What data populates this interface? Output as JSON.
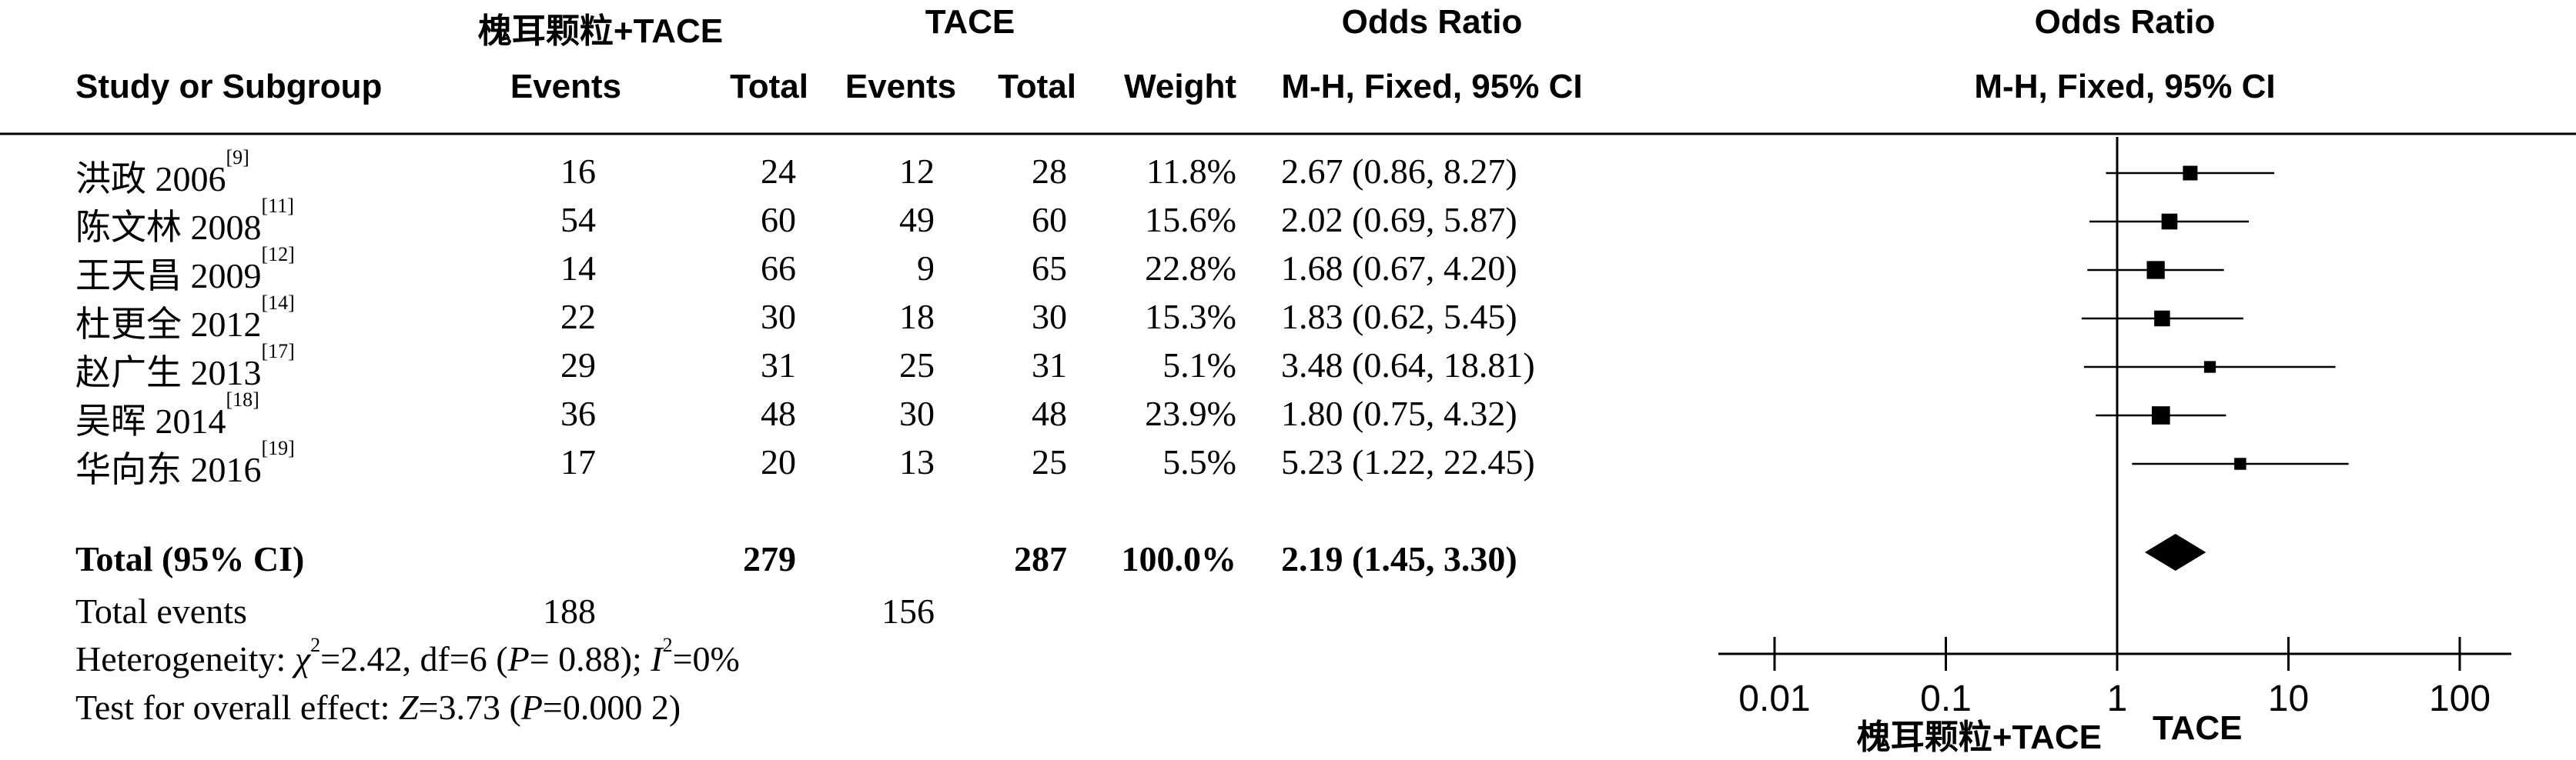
{
  "headers": {
    "group1": "槐耳颗粒+TACE",
    "group2": "TACE",
    "or_table": "Odds Ratio",
    "or_plot": "Odds Ratio",
    "study": "Study or Subgroup",
    "events1": "Events",
    "total1": "Total",
    "events2": "Events",
    "total2": "Total",
    "weight": "Weight",
    "method_table": "M-H, Fixed, 95% CI",
    "method_plot": "M-H, Fixed, 95% CI"
  },
  "studies": [
    {
      "name": "洪政 2006",
      "ref": "[9]",
      "e1": "16",
      "t1": "24",
      "e2": "12",
      "t2": "28",
      "weight": "11.8%",
      "ci": "2.67 (0.86, 8.27)"
    },
    {
      "name": "陈文林 2008",
      "ref": "[11]",
      "e1": "54",
      "t1": "60",
      "e2": "49",
      "t2": "60",
      "weight": "15.6%",
      "ci": "2.02 (0.69, 5.87)"
    },
    {
      "name": "王天昌 2009",
      "ref": "[12]",
      "e1": "14",
      "t1": "66",
      "e2": "9",
      "t2": "65",
      "weight": "22.8%",
      "ci": "1.68 (0.67, 4.20)"
    },
    {
      "name": "杜更全 2012",
      "ref": "[14]",
      "e1": "22",
      "t1": "30",
      "e2": "18",
      "t2": "30",
      "weight": "15.3%",
      "ci": "1.83 (0.62, 5.45)"
    },
    {
      "name": "赵广生 2013",
      "ref": "[17]",
      "e1": "29",
      "t1": "31",
      "e2": "25",
      "t2": "31",
      "weight": "5.1%",
      "ci": "3.48 (0.64, 18.81)"
    },
    {
      "name": "吴晖 2014",
      "ref": "[18]",
      "e1": "36",
      "t1": "48",
      "e2": "30",
      "t2": "48",
      "weight": "23.9%",
      "ci": "1.80 (0.75, 4.32)"
    },
    {
      "name": "华向东 2016",
      "ref": "[19]",
      "e1": "17",
      "t1": "20",
      "e2": "13",
      "t2": "25",
      "weight": "5.5%",
      "ci": "5.23 (1.22, 22.45)"
    }
  ],
  "total": {
    "label": "Total (95% CI)",
    "t1": "279",
    "t2": "287",
    "weight": "100.0%",
    "ci": "2.19 (1.45, 3.30)"
  },
  "total_events": {
    "label": "Total events",
    "e1": "188",
    "e2": "156"
  },
  "heterogeneity": {
    "prefix": "Heterogeneity: ",
    "chi_sym": "χ",
    "chi_sup": "2",
    "chi_val": "=2.42, df=6 (",
    "p_sym": "P",
    "p_val": "= 0.88); ",
    "i_sym": "I",
    "i_sup": "2",
    "i_val": "=0%"
  },
  "overall": {
    "prefix": "Test for overall effect: ",
    "z_sym": "Z",
    "z_val": "=3.73 (",
    "p_sym": "P",
    "p_val": "=0.000 2)"
  },
  "axis": {
    "ticks": [
      "0.01",
      "0.1",
      "1",
      "10",
      "100"
    ],
    "left_label": "槐耳颗粒+TACE",
    "right_label": "TACE"
  },
  "chart_data": {
    "type": "forest",
    "scale": "log",
    "xlim": [
      0.01,
      100
    ],
    "ticks": [
      0.01,
      0.1,
      1,
      10,
      100
    ],
    "series": [
      {
        "name": "洪政 2006",
        "or": 2.67,
        "lo": 0.86,
        "hi": 8.27,
        "weight": 11.8
      },
      {
        "name": "陈文林 2008",
        "or": 2.02,
        "lo": 0.69,
        "hi": 5.87,
        "weight": 15.6
      },
      {
        "name": "王天昌 2009",
        "or": 1.68,
        "lo": 0.67,
        "hi": 4.2,
        "weight": 22.8
      },
      {
        "name": "杜更全 2012",
        "or": 1.83,
        "lo": 0.62,
        "hi": 5.45,
        "weight": 15.3
      },
      {
        "name": "赵广生 2013",
        "or": 3.48,
        "lo": 0.64,
        "hi": 18.81,
        "weight": 5.1
      },
      {
        "name": "吴晖 2014",
        "or": 1.8,
        "lo": 0.75,
        "hi": 4.32,
        "weight": 23.9
      },
      {
        "name": "华向东 2016",
        "or": 5.23,
        "lo": 1.22,
        "hi": 22.45,
        "weight": 5.5
      }
    ],
    "pooled": {
      "or": 2.19,
      "lo": 1.45,
      "hi": 3.3
    }
  }
}
